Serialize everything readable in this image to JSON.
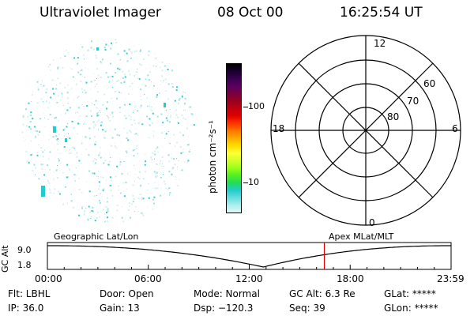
{
  "header": {
    "instrument": "Ultraviolet Imager",
    "date": "08 Oct 00",
    "time": "16:25:54 UT"
  },
  "colorbar": {
    "title": "photon cm⁻²s⁻¹",
    "colors": [
      "#000000",
      "#1a0030",
      "#3a0050",
      "#5a0060",
      "#7a0040",
      "#9a0020",
      "#c00010",
      "#e00000",
      "#ff3300",
      "#ff7700",
      "#ffaa00",
      "#ffdd00",
      "#ffff33",
      "#d4ff2a",
      "#99ff1a",
      "#55ee22",
      "#22dd55",
      "#22cccc",
      "#66dddd",
      "#aaeeee",
      "#e6f6f6"
    ],
    "ticks": [
      {
        "label": "100",
        "frac": 0.3
      },
      {
        "label": "10",
        "frac": 0.8
      }
    ]
  },
  "polar": {
    "rings": [
      "60",
      "70",
      "80"
    ],
    "hours": {
      "top": "12",
      "left": "18",
      "right": "6",
      "bottom": "0"
    }
  },
  "timeline": {
    "ylabel": "GC Alt",
    "ytop": "9.0",
    "ybottom": "1.8",
    "left_caption": "Geographic Lat/Lon",
    "right_caption": "Apex MLat/MLT",
    "ticks": [
      "00:00",
      "06:00",
      "12:00",
      "18:00",
      "23:59"
    ],
    "cursor_frac": 0.686,
    "minimum_frac": 0.535
  },
  "info": {
    "flt": "Flt: LBHL",
    "ip": "IP: 36.0",
    "door": "Door: Open",
    "gain": "Gain: 13",
    "mode": "Mode: Normal",
    "dsp": "Dsp: −120.3",
    "gcalt": "GC Alt: 6.3 Re",
    "seq": "Seq: 39",
    "glat": "GLat: *****",
    "glon": "GLon: *****"
  }
}
